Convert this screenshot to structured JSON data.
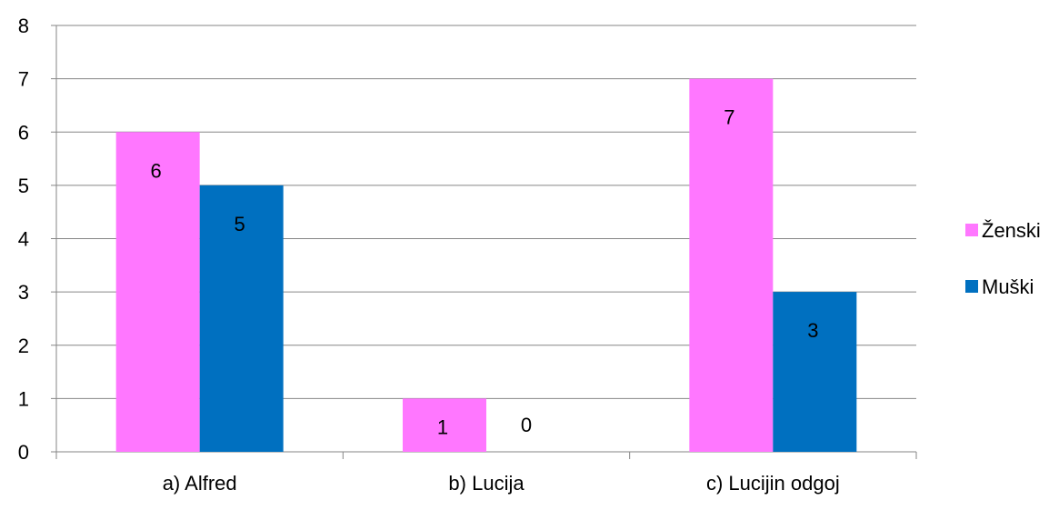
{
  "chart_data": {
    "type": "bar",
    "categories": [
      "a) Alfred",
      "b) Lucija",
      "c) Lucijin odgoj"
    ],
    "series": [
      {
        "name": "Ženski",
        "values": [
          6,
          1,
          7
        ],
        "color": "#FF77FF"
      },
      {
        "name": "Muški",
        "values": [
          5,
          0,
          3
        ],
        "color": "#0070C0"
      }
    ],
    "ylim": [
      0,
      8
    ],
    "yticks": [
      0,
      1,
      2,
      3,
      4,
      5,
      6,
      7,
      8
    ],
    "grid": true,
    "legend_position": "right",
    "data_labels": true,
    "colors": {
      "gridline": "#868686",
      "axis": "#868686"
    }
  }
}
